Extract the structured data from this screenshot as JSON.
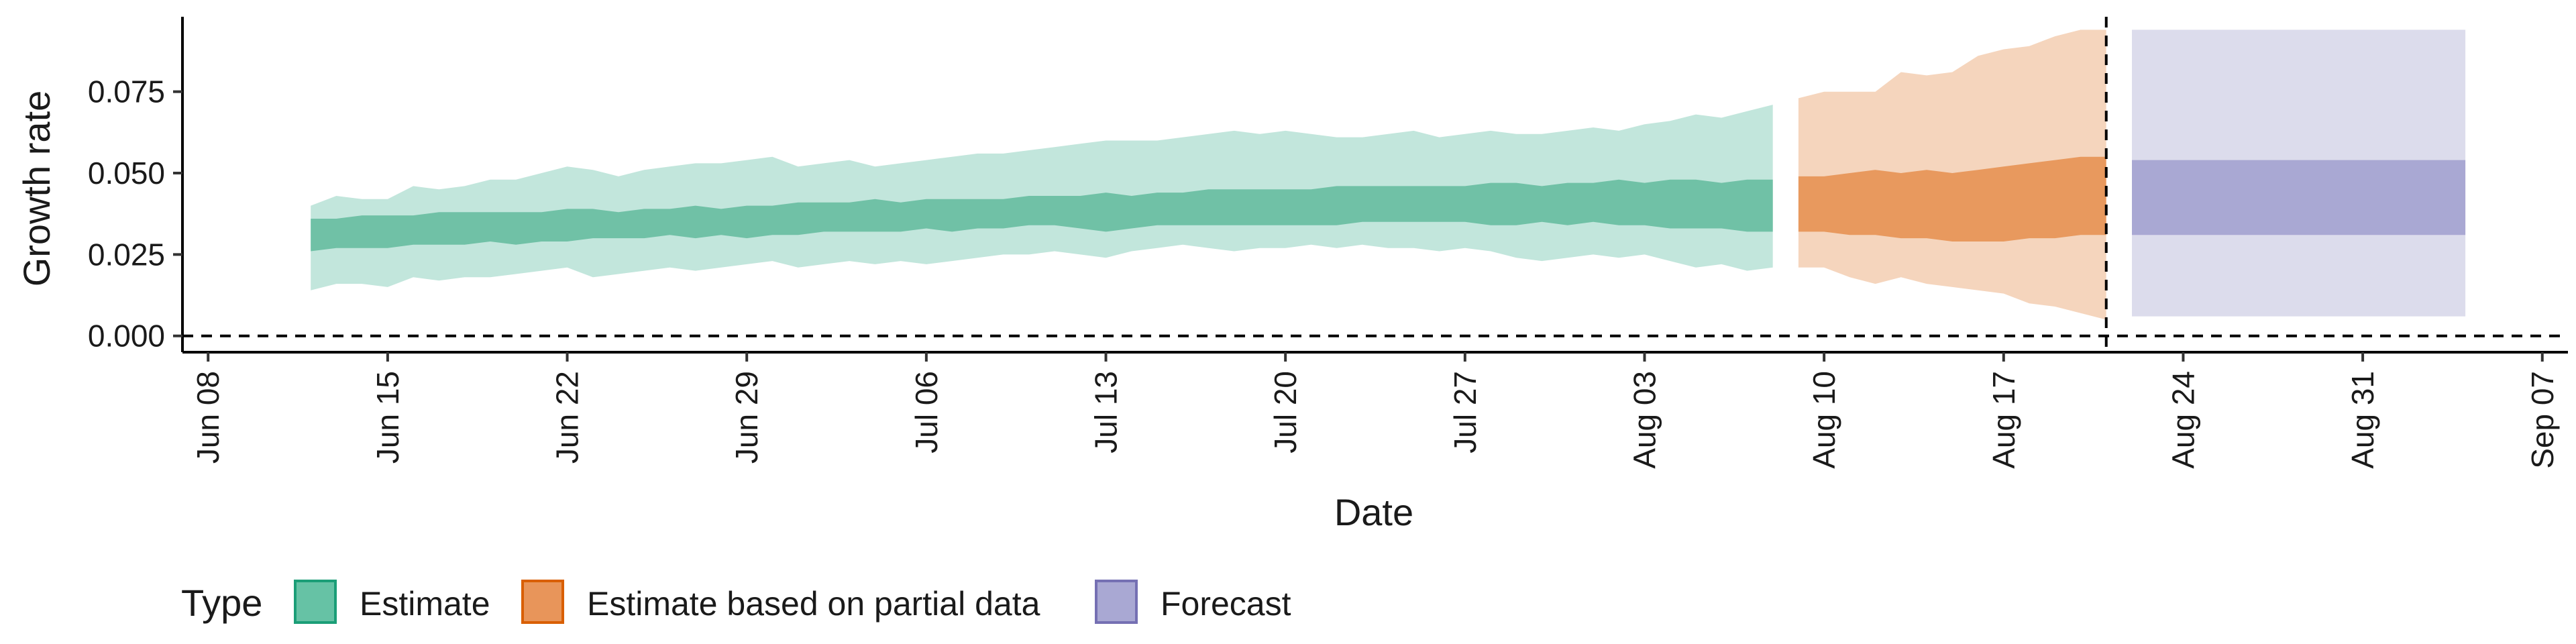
{
  "chart_data": {
    "type": "area",
    "xlabel": "Date",
    "ylabel": "Growth rate",
    "ylim": [
      -0.005,
      0.098
    ],
    "y_ticks": [
      0.0,
      0.025,
      0.05,
      0.075
    ],
    "y_tick_labels": [
      "0.000",
      "0.025",
      "0.050",
      "0.075"
    ],
    "x_ticks": [
      "2020-06-08",
      "2020-06-15",
      "2020-06-22",
      "2020-06-29",
      "2020-07-06",
      "2020-07-13",
      "2020-07-20",
      "2020-07-27",
      "2020-08-03",
      "2020-08-10",
      "2020-08-17",
      "2020-08-24",
      "2020-08-31",
      "2020-09-07"
    ],
    "x_tick_labels": [
      "Jun 08",
      "Jun 15",
      "Jun 22",
      "Jun 29",
      "Jul 06",
      "Jul 13",
      "Jul 20",
      "Jul 27",
      "Aug 03",
      "Aug 10",
      "Aug 17",
      "Aug 24",
      "Aug 31",
      "Sep 07"
    ],
    "xlim": [
      "2020-06-07",
      "2020-09-08"
    ],
    "hline": 0,
    "vline": "2020-08-21",
    "grid": false,
    "legend": {
      "title": "Type",
      "position": "bottom",
      "entries": [
        {
          "label": "Estimate",
          "fill": "#66c2a5",
          "border": "#1b9e77"
        },
        {
          "label": "Estimate based on partial data",
          "fill": "#e8955a",
          "border": "#d95f02"
        },
        {
          "label": "Forecast",
          "fill": "#a9a8d3",
          "border": "#7570b3"
        }
      ]
    },
    "series": [
      {
        "name": "Estimate",
        "outer_color": "#c2e6dc",
        "inner_color": "#70c1a6",
        "x": [
          "2020-06-12",
          "2020-06-13",
          "2020-06-14",
          "2020-06-15",
          "2020-06-16",
          "2020-06-17",
          "2020-06-18",
          "2020-06-19",
          "2020-06-20",
          "2020-06-21",
          "2020-06-22",
          "2020-06-23",
          "2020-06-24",
          "2020-06-25",
          "2020-06-26",
          "2020-06-27",
          "2020-06-28",
          "2020-06-29",
          "2020-06-30",
          "2020-07-01",
          "2020-07-02",
          "2020-07-03",
          "2020-07-04",
          "2020-07-05",
          "2020-07-06",
          "2020-07-07",
          "2020-07-08",
          "2020-07-09",
          "2020-07-10",
          "2020-07-11",
          "2020-07-12",
          "2020-07-13",
          "2020-07-14",
          "2020-07-15",
          "2020-07-16",
          "2020-07-17",
          "2020-07-18",
          "2020-07-19",
          "2020-07-20",
          "2020-07-21",
          "2020-07-22",
          "2020-07-23",
          "2020-07-24",
          "2020-07-25",
          "2020-07-26",
          "2020-07-27",
          "2020-07-28",
          "2020-07-29",
          "2020-07-30",
          "2020-07-31",
          "2020-08-01",
          "2020-08-02",
          "2020-08-03",
          "2020-08-04",
          "2020-08-05",
          "2020-08-06",
          "2020-08-07",
          "2020-08-08"
        ],
        "lower90": [
          0.014,
          0.016,
          0.016,
          0.015,
          0.018,
          0.017,
          0.018,
          0.018,
          0.019,
          0.02,
          0.021,
          0.018,
          0.019,
          0.02,
          0.021,
          0.02,
          0.021,
          0.022,
          0.023,
          0.021,
          0.022,
          0.023,
          0.022,
          0.023,
          0.022,
          0.023,
          0.024,
          0.025,
          0.025,
          0.026,
          0.025,
          0.024,
          0.026,
          0.027,
          0.028,
          0.027,
          0.026,
          0.027,
          0.027,
          0.028,
          0.027,
          0.028,
          0.027,
          0.027,
          0.026,
          0.027,
          0.026,
          0.024,
          0.023,
          0.024,
          0.025,
          0.024,
          0.025,
          0.023,
          0.021,
          0.022,
          0.02,
          0.021
        ],
        "lower50": [
          0.026,
          0.027,
          0.027,
          0.027,
          0.028,
          0.028,
          0.028,
          0.029,
          0.028,
          0.029,
          0.029,
          0.03,
          0.03,
          0.03,
          0.031,
          0.03,
          0.031,
          0.03,
          0.031,
          0.031,
          0.032,
          0.032,
          0.032,
          0.032,
          0.033,
          0.032,
          0.033,
          0.033,
          0.034,
          0.034,
          0.033,
          0.032,
          0.033,
          0.034,
          0.034,
          0.034,
          0.034,
          0.034,
          0.034,
          0.034,
          0.034,
          0.035,
          0.035,
          0.035,
          0.035,
          0.035,
          0.034,
          0.034,
          0.035,
          0.034,
          0.035,
          0.034,
          0.034,
          0.033,
          0.033,
          0.033,
          0.032,
          0.032
        ],
        "upper50": [
          0.036,
          0.036,
          0.037,
          0.037,
          0.037,
          0.038,
          0.038,
          0.038,
          0.038,
          0.038,
          0.039,
          0.039,
          0.038,
          0.039,
          0.039,
          0.04,
          0.039,
          0.04,
          0.04,
          0.041,
          0.041,
          0.041,
          0.042,
          0.041,
          0.042,
          0.042,
          0.042,
          0.042,
          0.043,
          0.043,
          0.043,
          0.044,
          0.043,
          0.044,
          0.044,
          0.045,
          0.045,
          0.045,
          0.045,
          0.045,
          0.046,
          0.046,
          0.046,
          0.046,
          0.046,
          0.046,
          0.047,
          0.047,
          0.046,
          0.047,
          0.047,
          0.048,
          0.047,
          0.048,
          0.048,
          0.047,
          0.048,
          0.048
        ],
        "upper90": [
          0.04,
          0.043,
          0.042,
          0.042,
          0.046,
          0.045,
          0.046,
          0.048,
          0.048,
          0.05,
          0.052,
          0.051,
          0.049,
          0.051,
          0.052,
          0.053,
          0.053,
          0.054,
          0.055,
          0.052,
          0.053,
          0.054,
          0.052,
          0.053,
          0.054,
          0.055,
          0.056,
          0.056,
          0.057,
          0.058,
          0.059,
          0.06,
          0.06,
          0.06,
          0.061,
          0.062,
          0.063,
          0.062,
          0.063,
          0.062,
          0.061,
          0.061,
          0.062,
          0.063,
          0.061,
          0.062,
          0.063,
          0.062,
          0.062,
          0.063,
          0.064,
          0.063,
          0.065,
          0.066,
          0.068,
          0.067,
          0.069,
          0.071
        ]
      },
      {
        "name": "Estimate based on partial data",
        "outer_color": "#f5d5bd",
        "inner_color": "#e8995e",
        "x": [
          "2020-08-09",
          "2020-08-10",
          "2020-08-11",
          "2020-08-12",
          "2020-08-13",
          "2020-08-14",
          "2020-08-15",
          "2020-08-16",
          "2020-08-17",
          "2020-08-18",
          "2020-08-19",
          "2020-08-20",
          "2020-08-21"
        ],
        "lower90": [
          0.021,
          0.021,
          0.018,
          0.016,
          0.018,
          0.016,
          0.015,
          0.014,
          0.013,
          0.01,
          0.009,
          0.007,
          0.005
        ],
        "lower50": [
          0.032,
          0.032,
          0.031,
          0.031,
          0.03,
          0.03,
          0.029,
          0.029,
          0.029,
          0.03,
          0.03,
          0.031,
          0.031
        ],
        "upper50": [
          0.049,
          0.049,
          0.05,
          0.051,
          0.05,
          0.051,
          0.05,
          0.051,
          0.052,
          0.053,
          0.054,
          0.055,
          0.055
        ],
        "upper90": [
          0.073,
          0.075,
          0.075,
          0.075,
          0.081,
          0.08,
          0.081,
          0.086,
          0.088,
          0.089,
          0.092,
          0.094,
          0.094
        ]
      },
      {
        "name": "Forecast",
        "outer_color": "#dcdcec",
        "inner_color": "#a9a8d3",
        "x": [
          "2020-08-22",
          "2020-09-04"
        ],
        "lower90": [
          0.006,
          0.006
        ],
        "lower50": [
          0.031,
          0.031
        ],
        "upper50": [
          0.054,
          0.054
        ],
        "upper90": [
          0.094,
          0.094
        ]
      }
    ]
  }
}
